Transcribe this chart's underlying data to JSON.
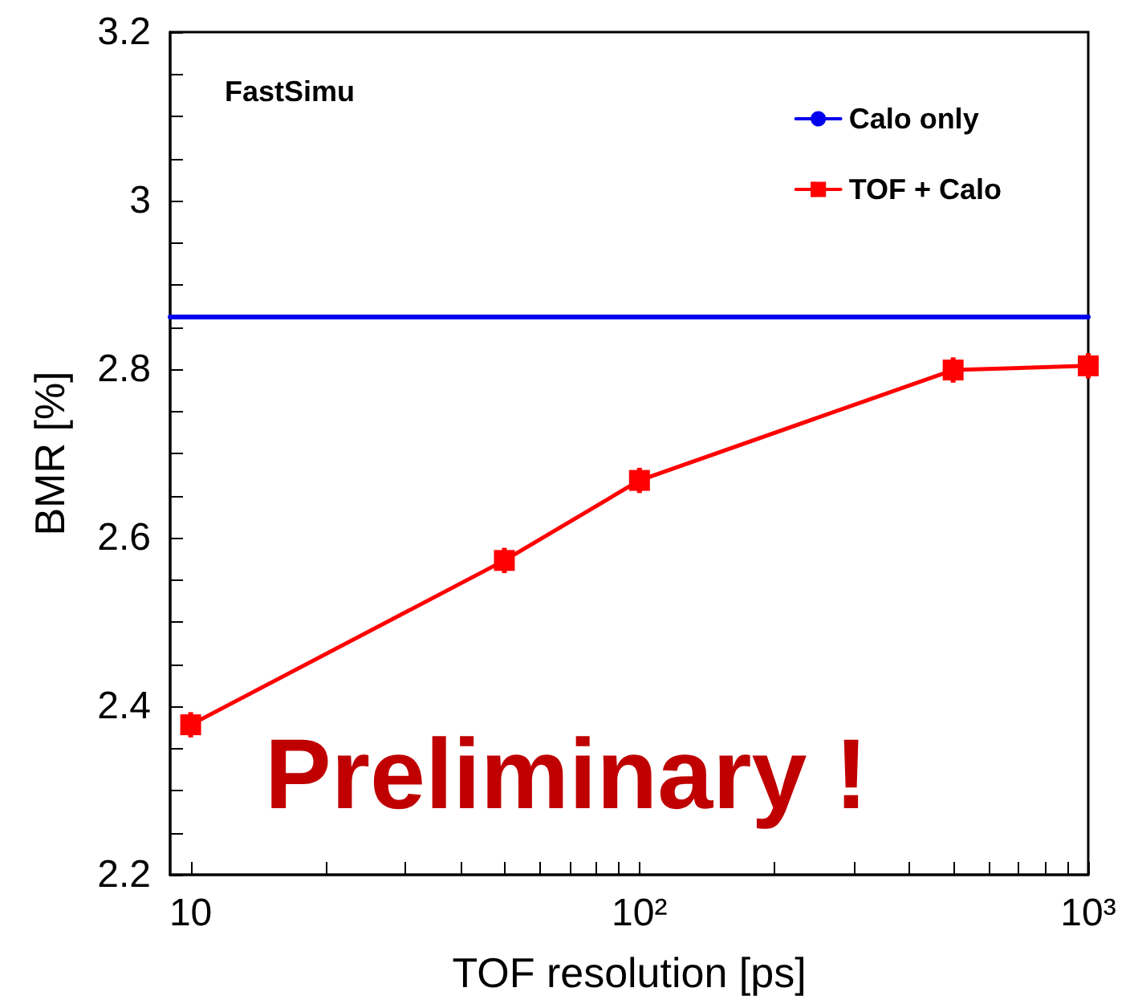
{
  "chart_data": {
    "type": "line",
    "xlabel": "TOF resolution [ps]",
    "ylabel": "BMR [%]",
    "annotations": [
      "FastSimu",
      "Preliminary !"
    ],
    "log": "x",
    "grid": false,
    "legend": "top right",
    "xlim": [
      9,
      1000
    ],
    "xticks": [
      {
        "value": 10,
        "label": "10"
      },
      {
        "value": 20,
        "label": null
      },
      {
        "value": 30,
        "label": null
      },
      {
        "value": 40,
        "label": null
      },
      {
        "value": 50,
        "label": null
      },
      {
        "value": 60,
        "label": null
      },
      {
        "value": 70,
        "label": null
      },
      {
        "value": 80,
        "label": null
      },
      {
        "value": 90,
        "label": null
      },
      {
        "value": 100,
        "label": "10²"
      },
      {
        "value": 200,
        "label": null
      },
      {
        "value": 300,
        "label": null
      },
      {
        "value": 400,
        "label": null
      },
      {
        "value": 500,
        "label": null
      },
      {
        "value": 600,
        "label": null
      },
      {
        "value": 700,
        "label": null
      },
      {
        "value": 800,
        "label": null
      },
      {
        "value": 900,
        "label": null
      },
      {
        "value": 1000,
        "label": "10³"
      }
    ],
    "ylim": [
      2.2,
      3.2
    ],
    "yticks": [
      2.2,
      {
        "value": 2.25,
        "label": null
      },
      {
        "value": 2.3,
        "label": null
      },
      {
        "value": 2.35,
        "label": null
      },
      2.4,
      {
        "value": 2.45,
        "label": null
      },
      {
        "value": 2.5,
        "label": null
      },
      {
        "value": 2.55,
        "label": null
      },
      2.6,
      {
        "value": 2.65,
        "label": null
      },
      {
        "value": 2.7,
        "label": null
      },
      {
        "value": 2.75,
        "label": null
      },
      2.8,
      {
        "value": 2.85,
        "label": null
      },
      {
        "value": 2.9,
        "label": null
      },
      {
        "value": 2.95,
        "label": null
      },
      3,
      {
        "value": 3.05,
        "label": null
      },
      {
        "value": 3.1,
        "label": null
      },
      {
        "value": 3.15,
        "label": null
      },
      3.2
    ],
    "series": [
      {
        "name": "Calo only",
        "color": "#0000ee",
        "x": [
          9,
          1000
        ],
        "values": [
          2.862,
          2.862
        ],
        "marker": "none"
      },
      {
        "name": "TOF + Calo",
        "color": "#ff0000",
        "x": [
          10,
          50,
          100,
          500,
          1000
        ],
        "values": [
          2.378,
          2.573,
          2.668,
          2.799,
          2.804
        ],
        "errors": [
          0.015,
          0.015,
          0.015,
          0.015,
          0.015
        ],
        "marker": "square"
      }
    ]
  }
}
